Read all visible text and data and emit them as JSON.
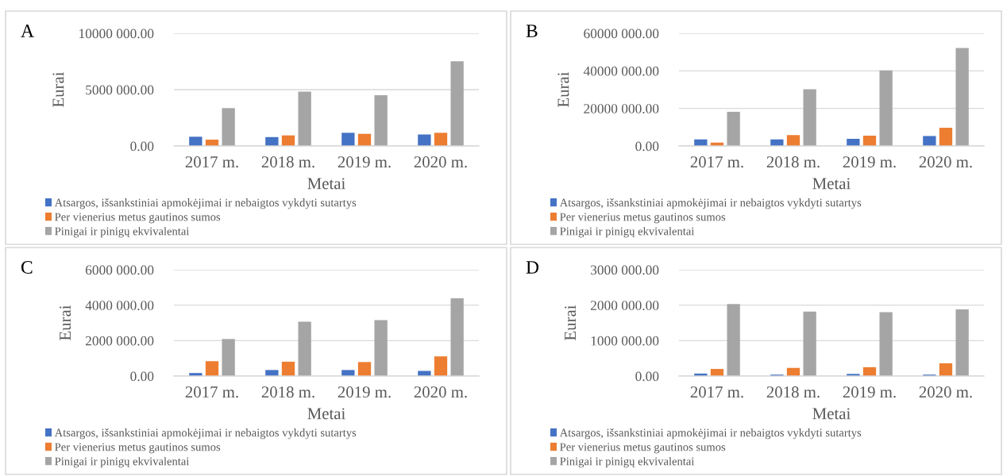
{
  "chart_data": [
    {
      "type": "bar",
      "title": "A",
      "xlabel": "Metai",
      "ylabel": "Eurai",
      "categories": [
        "2017 m.",
        "2018 m.",
        "2019 m.",
        "2020 m."
      ],
      "series": [
        {
          "name": "Atsargos, išsankstiniai apmokėjimai ir nebaigtos vykdyti sutartys",
          "color": "#4472c4",
          "values": [
            820000,
            790000,
            1170000,
            1020000
          ]
        },
        {
          "name": "Per vienerius metus gautinos sumos",
          "color": "#ed7d31",
          "values": [
            560000,
            940000,
            1080000,
            1170000
          ]
        },
        {
          "name": "Pinigai ir pinigų ekvivalentai",
          "color": "#a5a5a5",
          "values": [
            3360000,
            4820000,
            4500000,
            7510000
          ]
        }
      ],
      "ylim": [
        0,
        10000000
      ],
      "yticks": [
        {
          "value": 0,
          "label": "0.00"
        },
        {
          "value": 5000000,
          "label": "5000 000.00"
        },
        {
          "value": 10000000,
          "label": "10000 000.00"
        }
      ],
      "grid": "y",
      "legend": "bottom"
    },
    {
      "type": "bar",
      "title": "B",
      "xlabel": "Metai",
      "ylabel": "Eurai",
      "categories": [
        "2017 m.",
        "2018 m.",
        "2019 m.",
        "2020 m."
      ],
      "series": [
        {
          "name": "Atsargos, išsankstiniai apmokėjimai ir nebaigtos vykdyti sutartys",
          "color": "#4472c4",
          "values": [
            3500000,
            3500000,
            3800000,
            5300000
          ]
        },
        {
          "name": "Per vienerius metus gautinos sumos",
          "color": "#ed7d31",
          "values": [
            1800000,
            5800000,
            5500000,
            9700000
          ]
        },
        {
          "name": "Pinigai ir pinigų ekvivalentai",
          "color": "#a5a5a5",
          "values": [
            18200000,
            30200000,
            40200000,
            52200000
          ]
        }
      ],
      "ylim": [
        0,
        60000000
      ],
      "yticks": [
        {
          "value": 0,
          "label": "0.00"
        },
        {
          "value": 20000000,
          "label": "20000 000.00"
        },
        {
          "value": 40000000,
          "label": "40000 000.00"
        },
        {
          "value": 60000000,
          "label": "60000 000.00"
        }
      ],
      "grid": "y",
      "legend": "bottom"
    },
    {
      "type": "bar",
      "title": "C",
      "xlabel": "Metai",
      "ylabel": "Eurai",
      "categories": [
        "2017 m.",
        "2018 m.",
        "2019 m.",
        "2020 m."
      ],
      "series": [
        {
          "name": "Atsargos, išsankstiniai apmokėjimai ir nebaigtos vykdyti sutartys",
          "color": "#4472c4",
          "values": [
            170000,
            340000,
            340000,
            290000
          ]
        },
        {
          "name": "Per vienerius metus gautinos sumos",
          "color": "#ed7d31",
          "values": [
            840000,
            810000,
            790000,
            1110000
          ]
        },
        {
          "name": "Pinigai ir pinigų ekvivalentai",
          "color": "#a5a5a5",
          "values": [
            2090000,
            3070000,
            3160000,
            4390000
          ]
        }
      ],
      "ylim": [
        0,
        6000000
      ],
      "yticks": [
        {
          "value": 0,
          "label": "0.00"
        },
        {
          "value": 2000000,
          "label": "2000 000.00"
        },
        {
          "value": 4000000,
          "label": "4000 000.00"
        },
        {
          "value": 6000000,
          "label": "6000 000.00"
        }
      ],
      "grid": "y",
      "legend": "bottom"
    },
    {
      "type": "bar",
      "title": "D",
      "xlabel": "Metai",
      "ylabel": "Eurai",
      "categories": [
        "2017 m.",
        "2018 m.",
        "2019 m.",
        "2020 m."
      ],
      "series": [
        {
          "name": "Atsargos, išsankstiniai apmokėjimai ir nebaigtos vykdyti sutartys",
          "color": "#4472c4",
          "values": [
            70000,
            40000,
            60000,
            40000
          ]
        },
        {
          "name": "Per vienerius metus gautinos sumos",
          "color": "#ed7d31",
          "values": [
            200000,
            230000,
            250000,
            360000
          ]
        },
        {
          "name": "Pinigai ir pinigų ekvivalentai",
          "color": "#a5a5a5",
          "values": [
            2030000,
            1820000,
            1800000,
            1880000
          ]
        }
      ],
      "ylim": [
        0,
        3000000
      ],
      "yticks": [
        {
          "value": 0,
          "label": "0.00"
        },
        {
          "value": 1000000,
          "label": "1000 000.00"
        },
        {
          "value": 2000000,
          "label": "2000 000.00"
        },
        {
          "value": 3000000,
          "label": "3000 000.00"
        }
      ],
      "grid": "y",
      "legend": "bottom"
    }
  ]
}
